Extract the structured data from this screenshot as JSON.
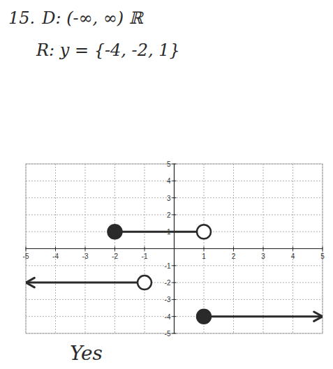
{
  "chart_data": {
    "type": "piecewise",
    "title": "15.",
    "annotations": [
      "D: (-∞, ∞) ℝ",
      "R: y = {-4, -2, 1}",
      "Yes"
    ],
    "xlim": [
      -5,
      5
    ],
    "ylim": [
      -5,
      5
    ],
    "xticks": [
      -5,
      -4,
      -3,
      -2,
      -1,
      1,
      2,
      3,
      4,
      5
    ],
    "yticks": [
      -5,
      -4,
      -3,
      -2,
      -1,
      1,
      2,
      3,
      4,
      5
    ],
    "grid": true,
    "color": "#2a2a2a",
    "series": [
      {
        "type": "line",
        "line_style": "arrow",
        "x": [
          -1,
          -5
        ],
        "values": [
          -2,
          -2
        ]
      },
      {
        "type": "line",
        "line_style": "solid",
        "x": [
          -2,
          1
        ],
        "values": [
          1,
          1
        ]
      },
      {
        "type": "line",
        "line_style": "arrow",
        "x": [
          1,
          5
        ],
        "values": [
          -4,
          -4
        ]
      },
      {
        "type": "scatter",
        "marker": "open",
        "x": [
          -1,
          1
        ],
        "values": [
          -2,
          1
        ]
      },
      {
        "type": "scatter",
        "marker": "filled",
        "x": [
          -2,
          1
        ],
        "values": [
          1,
          -4
        ]
      }
    ]
  }
}
